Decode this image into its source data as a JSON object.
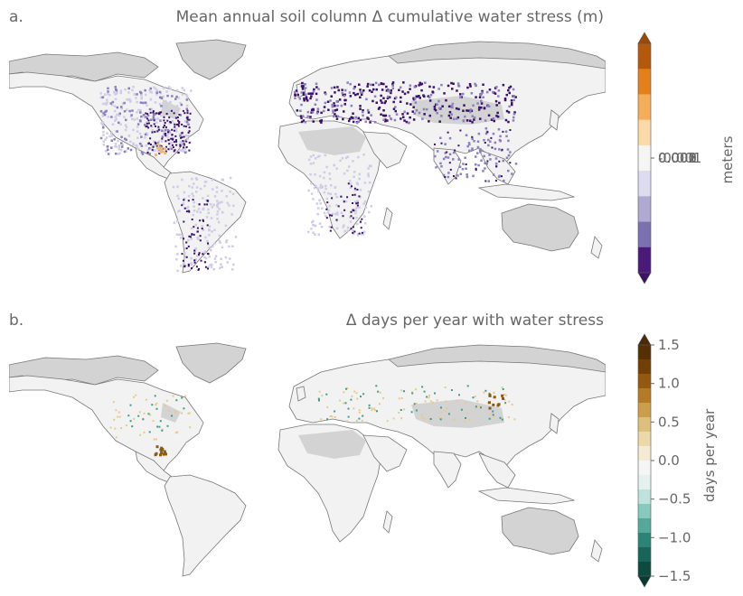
{
  "panels": [
    {
      "label": "a.",
      "title": "Mean annual soil column Δ cumulative water stress (m)",
      "colorbar": {
        "label": "meters",
        "colors": [
          "#4a1a7a",
          "#7b71b0",
          "#b0aad2",
          "#dcdbef",
          "#f5f5f5",
          "#fbd9a8",
          "#f6ad5a",
          "#e3801a",
          "#b4580c"
        ],
        "extend_low_color": "#3d1266",
        "extend_high_color": "#9a4a06",
        "tick_labels": [
          "-0.001",
          "0.000",
          "0.001",
          "0.002",
          "0.003"
        ]
      },
      "map_colors": {
        "land": "#f2f2f2",
        "nodata": "#d3d3d3",
        "coast": "#777777",
        "wet": "#3b0f6b",
        "mid": "#8c7fc0",
        "light": "#cfcce6",
        "dry": "#f1b872"
      }
    },
    {
      "label": "b.",
      "title": "Δ days per year with water stress",
      "colorbar": {
        "label": "days per year",
        "colors": [
          "#0d4a40",
          "#17665a",
          "#2a8577",
          "#54a99b",
          "#88c9bd",
          "#bfe3dc",
          "#e4f2ef",
          "#f5f5f5",
          "#f5ebd3",
          "#ecd9a8",
          "#dfc07a",
          "#cc9d4a",
          "#b47a26",
          "#94580e",
          "#723f05",
          "#553005"
        ],
        "extend_low_color": "#073a31",
        "extend_high_color": "#4a2a05",
        "tick_labels": [
          "1.5",
          "1.0",
          "0.5",
          "0.0",
          "−0.5",
          "−1.0",
          "−1.5"
        ],
        "tick_values": [
          1.5,
          1.0,
          0.5,
          0.0,
          -0.5,
          -1.0,
          -1.5
        ]
      },
      "map_colors": {
        "land": "#f2f2f2",
        "nodata": "#d3d3d3",
        "coast": "#777777",
        "pos": "#8a5a12",
        "neg": "#3d9b8c",
        "light_pos": "#e8c98a"
      }
    }
  ]
}
